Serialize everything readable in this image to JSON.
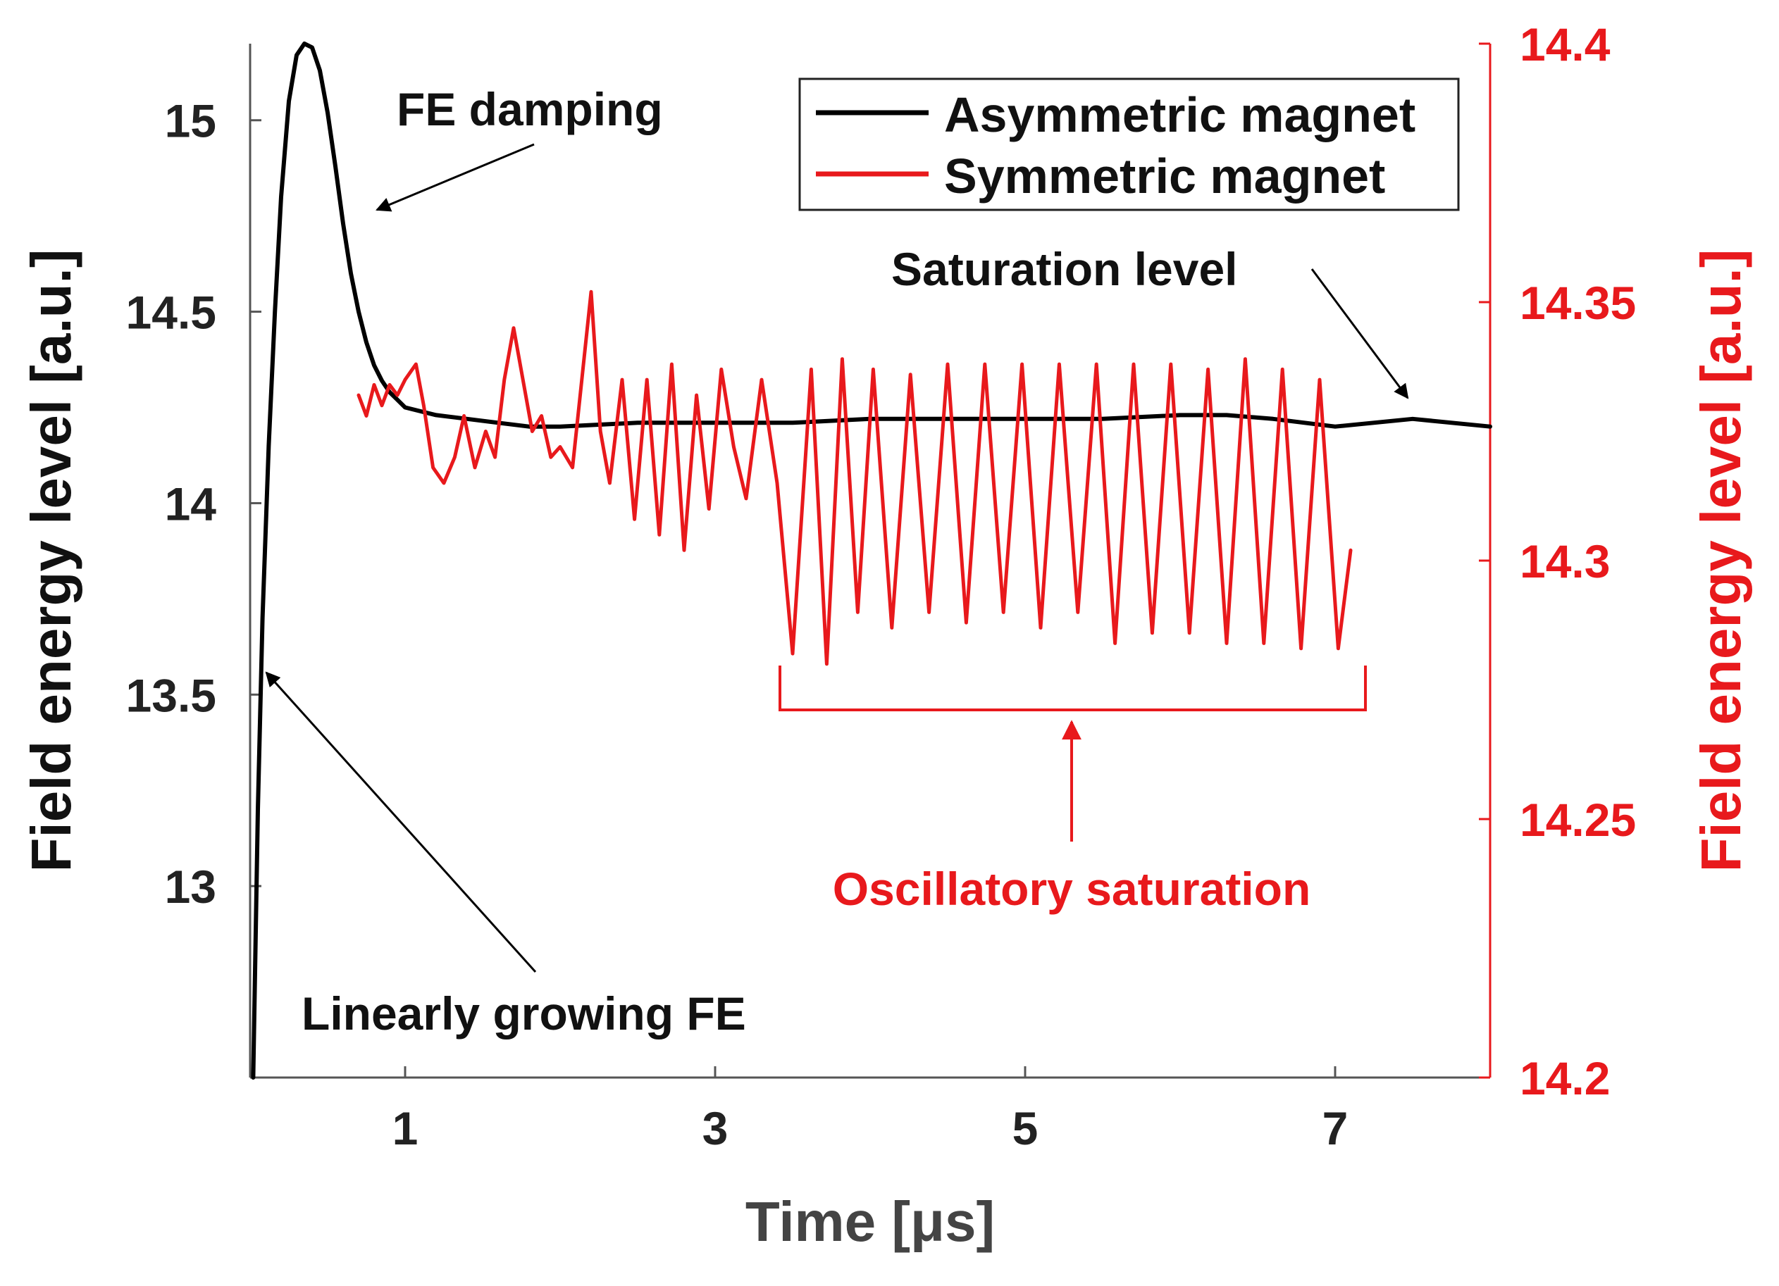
{
  "chart_data": {
    "type": "line",
    "title": "",
    "xlabel": "Time [μs]",
    "ylabel": "Field energy level [a.u.]",
    "y2label": "Field energy level [a.u.]",
    "xlim": [
      0,
      8
    ],
    "ylim": [
      12.5,
      15.2
    ],
    "y2lim": [
      14.2,
      14.4
    ],
    "xticks": [
      1,
      3,
      5,
      7
    ],
    "yticks": [
      13,
      13.5,
      14,
      14.5,
      15
    ],
    "y2ticks": [
      14.2,
      14.25,
      14.3,
      14.35,
      14.4
    ],
    "grid": false,
    "legend_position": "top-right",
    "colors": {
      "asymmetric": "#000000",
      "symmetric": "#e8191c",
      "axis_right": "#e8191c"
    },
    "series": [
      {
        "name": "Asymmetric magnet",
        "axis": "left",
        "color": "#000000",
        "x": [
          0.02,
          0.05,
          0.08,
          0.12,
          0.16,
          0.2,
          0.25,
          0.3,
          0.35,
          0.4,
          0.45,
          0.5,
          0.55,
          0.6,
          0.65,
          0.7,
          0.75,
          0.8,
          0.85,
          0.9,
          0.95,
          1.0,
          1.1,
          1.2,
          1.4,
          1.6,
          1.8,
          2.0,
          2.5,
          3.0,
          3.5,
          4.0,
          4.5,
          5.0,
          5.5,
          6.0,
          6.3,
          6.6,
          7.0,
          7.5,
          8.0
        ],
        "y": [
          12.5,
          13.2,
          13.7,
          14.15,
          14.5,
          14.8,
          15.05,
          15.17,
          15.2,
          15.19,
          15.13,
          15.02,
          14.88,
          14.73,
          14.6,
          14.5,
          14.42,
          14.36,
          14.32,
          14.29,
          14.27,
          14.25,
          14.24,
          14.23,
          14.22,
          14.21,
          14.2,
          14.2,
          14.21,
          14.21,
          14.21,
          14.22,
          14.22,
          14.22,
          14.22,
          14.23,
          14.23,
          14.22,
          14.2,
          14.22,
          14.2
        ]
      },
      {
        "name": "Symmetric magnet",
        "axis": "right",
        "color": "#e8191c",
        "x": [
          0.7,
          0.75,
          0.8,
          0.85,
          0.9,
          0.95,
          1.0,
          1.07,
          1.12,
          1.18,
          1.25,
          1.32,
          1.38,
          1.45,
          1.52,
          1.58,
          1.64,
          1.7,
          1.76,
          1.82,
          1.88,
          1.94,
          2.0,
          2.08,
          2.14,
          2.2,
          2.26,
          2.32,
          2.4,
          2.48,
          2.56,
          2.64,
          2.72,
          2.8,
          2.88,
          2.96,
          3.04,
          3.12,
          3.2,
          3.3,
          3.4,
          3.5,
          3.62,
          3.72,
          3.82,
          3.92,
          4.02,
          4.14,
          4.26,
          4.38,
          4.5,
          4.62,
          4.74,
          4.86,
          4.98,
          5.1,
          5.22,
          5.34,
          5.46,
          5.58,
          5.7,
          5.82,
          5.94,
          6.06,
          6.18,
          6.3,
          6.42,
          6.54,
          6.66,
          6.78,
          6.9,
          7.02,
          7.1
        ],
        "y": [
          14.332,
          14.328,
          14.334,
          14.33,
          14.334,
          14.332,
          14.335,
          14.338,
          14.33,
          14.318,
          14.315,
          14.32,
          14.328,
          14.318,
          14.325,
          14.32,
          14.335,
          14.345,
          14.335,
          14.325,
          14.328,
          14.32,
          14.322,
          14.318,
          14.335,
          14.352,
          14.325,
          14.315,
          14.335,
          14.308,
          14.335,
          14.305,
          14.338,
          14.302,
          14.332,
          14.31,
          14.337,
          14.322,
          14.312,
          14.335,
          14.315,
          14.282,
          14.337,
          14.28,
          14.339,
          14.29,
          14.337,
          14.287,
          14.336,
          14.29,
          14.338,
          14.288,
          14.338,
          14.29,
          14.338,
          14.287,
          14.338,
          14.29,
          14.338,
          14.284,
          14.338,
          14.286,
          14.338,
          14.286,
          14.337,
          14.284,
          14.339,
          14.284,
          14.337,
          14.283,
          14.335,
          14.283,
          14.302
        ]
      }
    ],
    "annotations": [
      {
        "text": "FE damping",
        "color": "#000000"
      },
      {
        "text": "Saturation level",
        "color": "#000000"
      },
      {
        "text": "Linearly growing FE",
        "color": "#000000"
      },
      {
        "text": "Oscillatory saturation",
        "color": "#e8191c"
      }
    ]
  }
}
